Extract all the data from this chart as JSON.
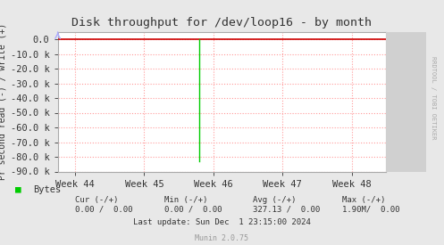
{
  "title": "Disk throughput for /dev/loop16 - by month",
  "ylabel": "Pr second read (-) / write (+)",
  "background_color": "#e8e8e8",
  "plot_background_color": "#ffffff",
  "grid_color": "#ff9999",
  "x_tick_labels": [
    "Week 44",
    "Week 45",
    "Week 46",
    "Week 47",
    "Week 48"
  ],
  "x_tick_positions": [
    0,
    1,
    2,
    3,
    4
  ],
  "ylim": [
    -90000,
    5000
  ],
  "yticks": [
    0,
    -10000,
    -20000,
    -30000,
    -40000,
    -50000,
    -60000,
    -70000,
    -80000,
    -90000
  ],
  "ytick_labels": [
    "0.0",
    "-10.0 k",
    "-20.0 k",
    "-30.0 k",
    "-40.0 k",
    "-50.0 k",
    "-60.0 k",
    "-70.0 k",
    "-80.0 k",
    "-90.0 k"
  ],
  "spike_x": 1.8,
  "spike_y_bottom": -83000,
  "spike_color": "#00cc00",
  "line_y": 0.0,
  "line_color": "#cc0000",
  "border_color": "#aaaaaa",
  "title_color": "#333333",
  "tick_color": "#333333",
  "legend_label": "Bytes",
  "legend_color": "#00cc00",
  "footer_cur_label": "Cur (-/+)",
  "footer_min_label": "Min (-/+)",
  "footer_avg_label": "Avg (-/+)",
  "footer_max_label": "Max (-/+)",
  "footer_bytes_label": "Bytes",
  "footer_cur_val": "0.00 /  0.00",
  "footer_min_val": "0.00 /  0.00",
  "footer_avg_val": "327.13 /  0.00",
  "footer_max_val": "1.90M/  0.00",
  "footer_lastupdate": "Last update: Sun Dec  1 23:15:00 2024",
  "munin_text": "Munin 2.0.75",
  "watermark": "RRDTOOL / TOBI OETIKER",
  "right_margin_color": "#d0d0d0"
}
